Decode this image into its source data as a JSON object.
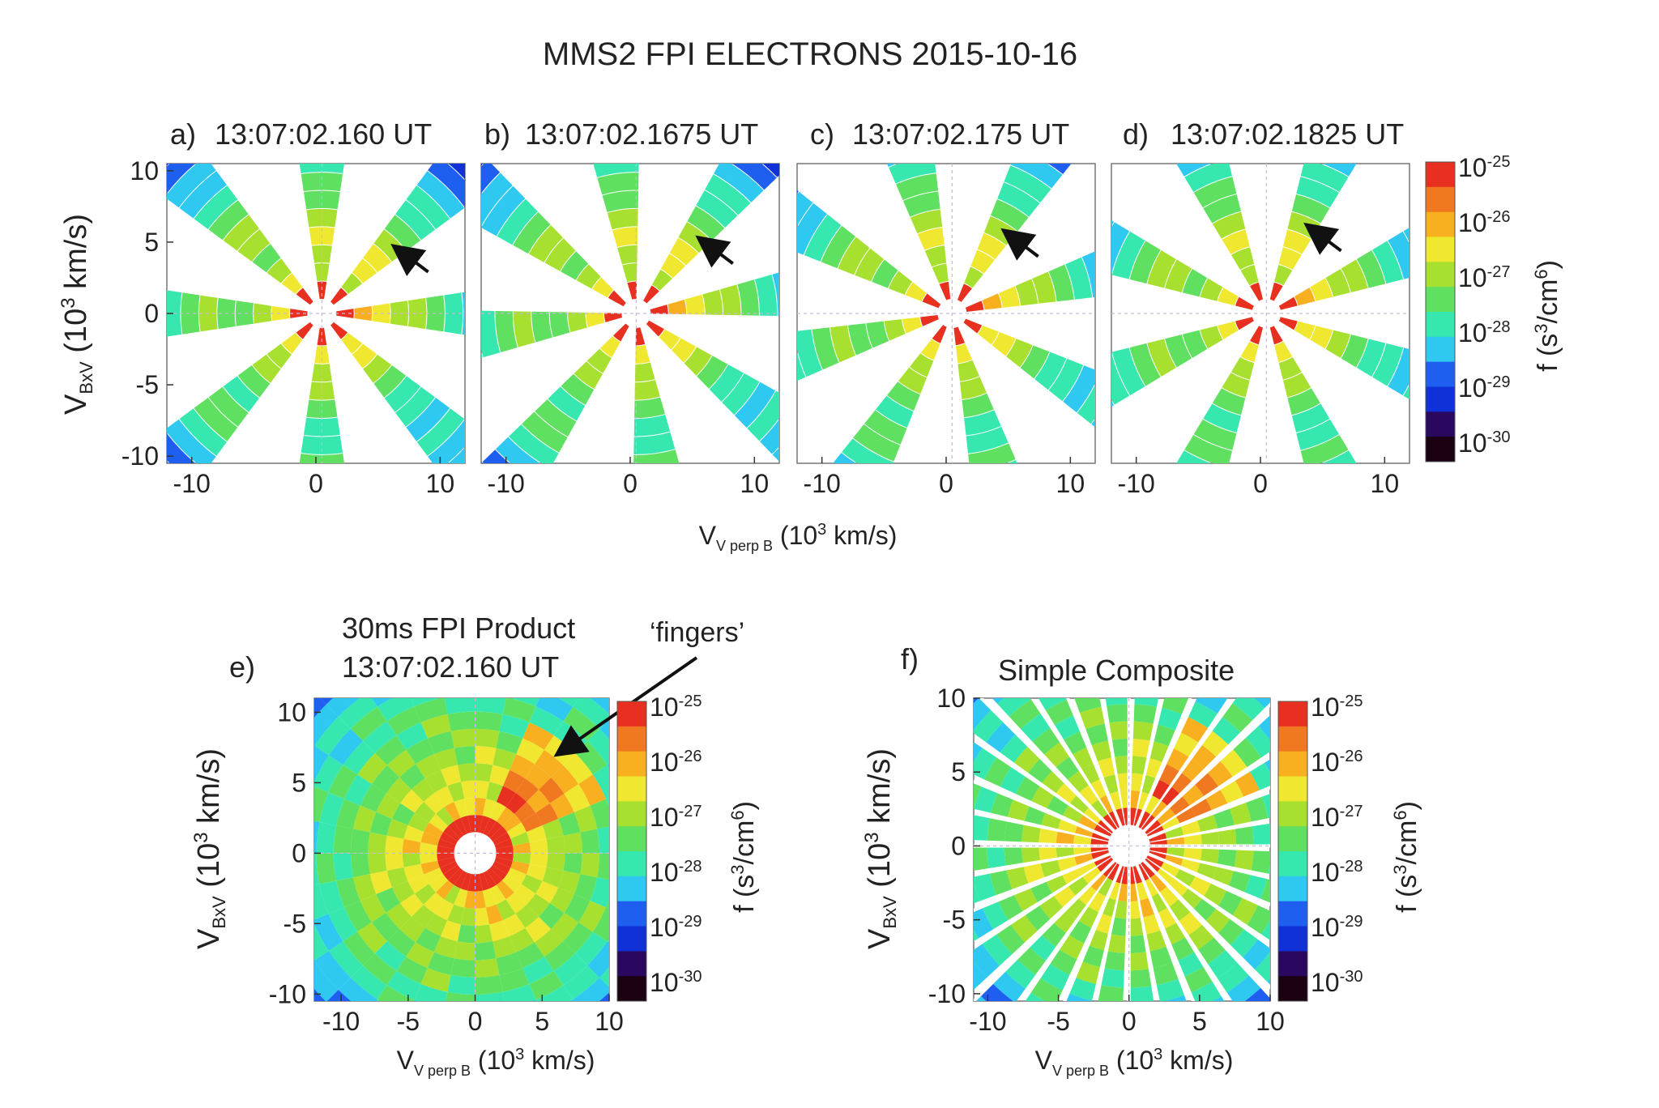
{
  "figure": {
    "title": "MMS2 FPI ELECTRONS 2015-10-16",
    "xlabel_main": "V",
    "xlabel_sub": "V perp B",
    "xlabel_unit_prefix": " (10",
    "xlabel_unit_exp": "3",
    "xlabel_unit_suffix": " km/s)",
    "ylabel_main": "V",
    "ylabel_sub": "BxV",
    "ylabel_unit_prefix": " (10",
    "ylabel_unit_exp": "3",
    "ylabel_unit_suffix": " km/s)",
    "colorbar_label_prefix": "f (s",
    "colorbar_label_exp1": "3",
    "colorbar_label_mid": "/cm",
    "colorbar_label_exp2": "6",
    "colorbar_label_suffix": ")",
    "colorbar_colors": [
      "#1a0010",
      "#2a0860",
      "#1030d8",
      "#1e5ff0",
      "#2ec8f0",
      "#36e8b0",
      "#5fe060",
      "#a8e030",
      "#f0e830",
      "#f8b020",
      "#f07820",
      "#e83020"
    ]
  },
  "chart_data": [
    {
      "type": "heatmap",
      "id": "a",
      "panel_label": "a)",
      "title": "13:07:02.160 UT",
      "kind": "wedges",
      "rotation_deg": 0,
      "xlim": [
        -12,
        12
      ],
      "ylim": [
        -10.5,
        10.5
      ],
      "xticks": [
        -10,
        0,
        10
      ],
      "yticks": [
        -10,
        -5,
        0,
        5,
        10
      ],
      "arrow": true,
      "colorbar": "shared",
      "colorbar_ticks": [
        {
          "base": "10",
          "exp": "-25"
        },
        {
          "base": "10",
          "exp": "-26"
        },
        {
          "base": "10",
          "exp": "-27"
        },
        {
          "base": "10",
          "exp": "-28"
        },
        {
          "base": "10",
          "exp": "-29"
        },
        {
          "base": "10",
          "exp": "-30"
        }
      ],
      "colorbar_range_log10": [
        -30,
        -25
      ]
    },
    {
      "type": "heatmap",
      "id": "b",
      "panel_label": "b)",
      "title": "13:07:02.1675 UT",
      "kind": "wedges",
      "rotation_deg": 7.5,
      "xlim": [
        -12,
        12
      ],
      "ylim": [
        -10.5,
        10.5
      ],
      "xticks": [
        -10,
        0,
        10
      ],
      "yticks": [],
      "arrow": true
    },
    {
      "type": "heatmap",
      "id": "c",
      "panel_label": "c)",
      "title": "13:07:02.175 UT",
      "kind": "wedges",
      "rotation_deg": 15,
      "xlim": [
        -12,
        12
      ],
      "ylim": [
        -10.5,
        10.5
      ],
      "xticks": [
        -10,
        0,
        10
      ],
      "yticks": [],
      "arrow": true
    },
    {
      "type": "heatmap",
      "id": "d",
      "panel_label": "d)",
      "title": "13:07:02.1825 UT",
      "kind": "wedges",
      "rotation_deg": 22.5,
      "xlim": [
        -12,
        12
      ],
      "ylim": [
        -10.5,
        10.5
      ],
      "xticks": [
        -10,
        0,
        10
      ],
      "yticks": [],
      "arrow": true
    },
    {
      "type": "heatmap",
      "id": "e",
      "panel_label": "e)",
      "title_line1": "30ms FPI Product",
      "title_line2": "13:07:02.160 UT",
      "annotation": "‘fingers’",
      "kind": "full",
      "xlim": [
        -12,
        10
      ],
      "ylim": [
        -10.5,
        11
      ],
      "xticks": [
        -10,
        -5,
        0,
        5,
        10
      ],
      "yticks": [
        -10,
        -5,
        0,
        5,
        10
      ],
      "colorbar_ticks": [
        {
          "base": "10",
          "exp": "-25"
        },
        {
          "base": "10",
          "exp": "-26"
        },
        {
          "base": "10",
          "exp": "-27"
        },
        {
          "base": "10",
          "exp": "-28"
        },
        {
          "base": "10",
          "exp": "-29"
        },
        {
          "base": "10",
          "exp": "-30"
        }
      ],
      "colorbar_range_log10": [
        -30,
        -25
      ]
    },
    {
      "type": "heatmap",
      "id": "f",
      "panel_label": "f)",
      "title": "Simple Composite",
      "kind": "composite",
      "xlim": [
        -11,
        10
      ],
      "ylim": [
        -10.5,
        10
      ],
      "xticks": [
        -10,
        -5,
        0,
        5,
        10
      ],
      "yticks": [
        -10,
        -5,
        0,
        5,
        10
      ],
      "colorbar_ticks": [
        {
          "base": "10",
          "exp": "-25"
        },
        {
          "base": "10",
          "exp": "-26"
        },
        {
          "base": "10",
          "exp": "-27"
        },
        {
          "base": "10",
          "exp": "-28"
        },
        {
          "base": "10",
          "exp": "-29"
        },
        {
          "base": "10",
          "exp": "-30"
        }
      ],
      "colorbar_range_log10": [
        -30,
        -25
      ]
    }
  ]
}
